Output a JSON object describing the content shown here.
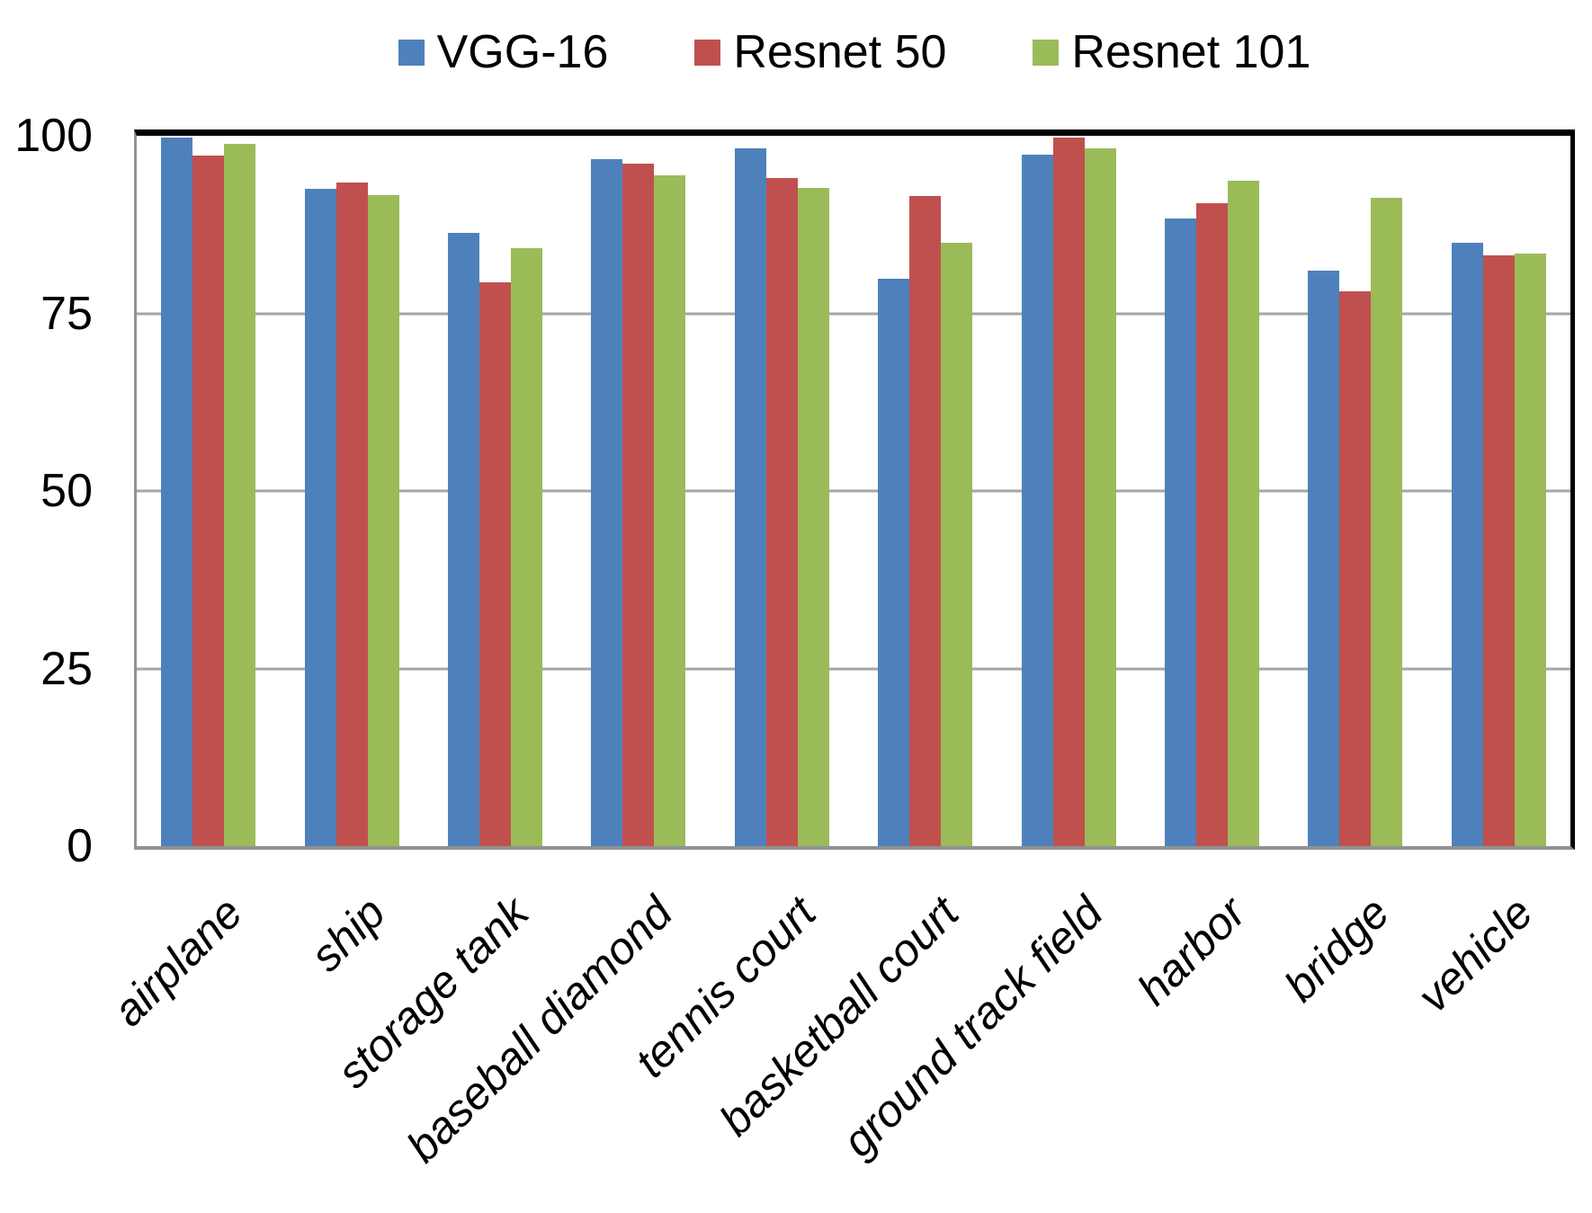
{
  "chart_data": {
    "type": "bar",
    "title": "",
    "xlabel": "",
    "ylabel": "",
    "legend_position": "top",
    "grid": "horizontal",
    "categories": [
      "airplane",
      "ship",
      "storage tank",
      "baseball diamond",
      "tennis court",
      "basketball court",
      "ground track field",
      "harbor",
      "bridge",
      "vehicle"
    ],
    "series": [
      {
        "name": "VGG-16",
        "color": "#4E81BC",
        "values": [
          99.7,
          92.5,
          86.3,
          96.7,
          98.2,
          79.9,
          97.3,
          88.4,
          81.0,
          84.9
        ]
      },
      {
        "name": "Resnet 50",
        "color": "#C0504D",
        "values": [
          97.2,
          93.4,
          79.4,
          96.1,
          94.1,
          91.5,
          99.8,
          90.5,
          78.1,
          83.2
        ]
      },
      {
        "name": "Resnet 101",
        "color": "#9BBB59",
        "values": [
          98.9,
          91.6,
          84.2,
          94.4,
          92.7,
          84.9,
          98.2,
          93.7,
          91.3,
          83.4
        ]
      }
    ],
    "y_axis": {
      "min": 0,
      "max": 100,
      "ticks": [
        0,
        25,
        50,
        75,
        100
      ]
    },
    "colors": {
      "plot_top_border": "#000000",
      "plot_right_border": "#000000",
      "axis_gray": "#919191",
      "gridline_gray": "#A6A6A6",
      "background": "#FFFFFF",
      "text": "#000000"
    }
  }
}
